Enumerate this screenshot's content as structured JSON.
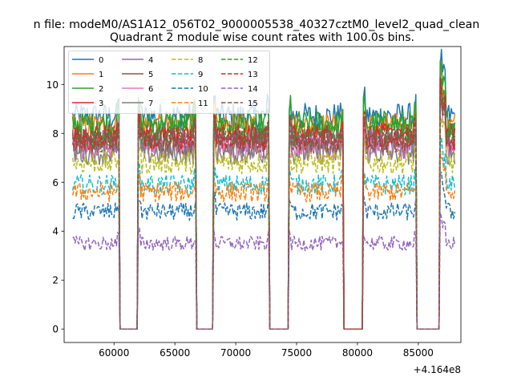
{
  "chart_data": {
    "type": "line",
    "suptitle": "n file: modeM0/AS1A12_056T02_9000005538_40327cztM0_level2_quad_clean",
    "title": "Quadrant 2 module wise count rates with 100.0s bins.",
    "xlabel": "",
    "ylabel": "",
    "x_offset_label": "+4.164e8",
    "xlim": [
      55900,
      88500
    ],
    "ylim": [
      -0.55,
      11.55
    ],
    "xticks": [
      60000,
      65000,
      70000,
      75000,
      80000,
      85000
    ],
    "xtick_labels": [
      "60000",
      "65000",
      "70000",
      "75000",
      "80000",
      "85000"
    ],
    "yticks": [
      0,
      2,
      4,
      6,
      8,
      10
    ],
    "ytick_labels": [
      "0",
      "2",
      "4",
      "6",
      "8",
      "10"
    ],
    "grid": false,
    "legend_position": "top-left",
    "legend_columns": 4,
    "x_start": 56600,
    "x_step": 100,
    "x_end": 88000,
    "gaps": [
      [
        60500,
        61900
      ],
      [
        66800,
        68100
      ],
      [
        72800,
        74300
      ],
      [
        78900,
        80400
      ],
      [
        84900,
        86700
      ]
    ],
    "series": [
      {
        "name": "0",
        "color": "#1f77b4",
        "style": "solid",
        "level": 8.7
      },
      {
        "name": "1",
        "color": "#ff7f0e",
        "style": "solid",
        "level": 8.3
      },
      {
        "name": "2",
        "color": "#2ca02c",
        "style": "solid",
        "level": 8.4
      },
      {
        "name": "3",
        "color": "#d62728",
        "style": "solid",
        "level": 7.9
      },
      {
        "name": "4",
        "color": "#9467bd",
        "style": "solid",
        "level": 7.7
      },
      {
        "name": "5",
        "color": "#8c564b",
        "style": "solid",
        "level": 7.6
      },
      {
        "name": "6",
        "color": "#e377c2",
        "style": "solid",
        "level": 7.4
      },
      {
        "name": "7",
        "color": "#7f7f7f",
        "style": "solid",
        "level": 7.2
      },
      {
        "name": "8",
        "color": "#bcbd22",
        "style": "dashed",
        "level": 6.8
      },
      {
        "name": "9",
        "color": "#17becf",
        "style": "dashed",
        "level": 5.9
      },
      {
        "name": "10",
        "color": "#1f77b4",
        "style": "dashed",
        "level": 4.8
      },
      {
        "name": "11",
        "color": "#ff7f0e",
        "style": "dashed",
        "level": 5.6
      },
      {
        "name": "12",
        "color": "#2ca02c",
        "style": "dashed",
        "level": 8.0
      },
      {
        "name": "13",
        "color": "#d62728",
        "style": "dashed",
        "level": 7.8
      },
      {
        "name": "14",
        "color": "#9467bd",
        "style": "dashed",
        "level": 3.5
      },
      {
        "name": "15",
        "color": "#8c564b",
        "style": "dashed",
        "level": 7.7
      }
    ]
  }
}
